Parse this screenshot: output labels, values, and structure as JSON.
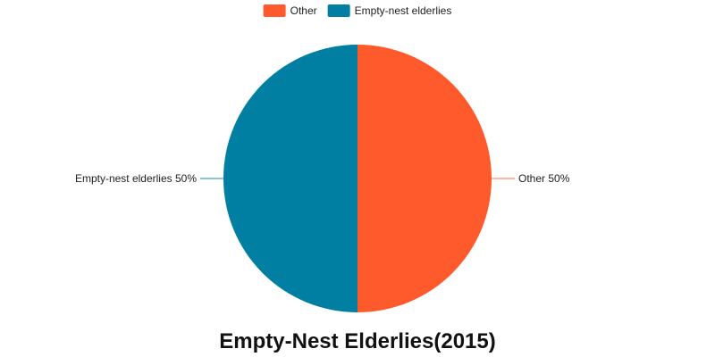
{
  "chart_data": {
    "type": "pie",
    "title": "Empty-Nest Elderlies(2015)",
    "legend_position": "top",
    "slices": [
      {
        "name": "Other",
        "value": 50,
        "label": "Other 50%",
        "color": "#ff5a2c"
      },
      {
        "name": "Empty-nest elderlies",
        "value": 50,
        "label": "Empty-nest elderlies 50%",
        "color": "#007fa3"
      }
    ]
  }
}
